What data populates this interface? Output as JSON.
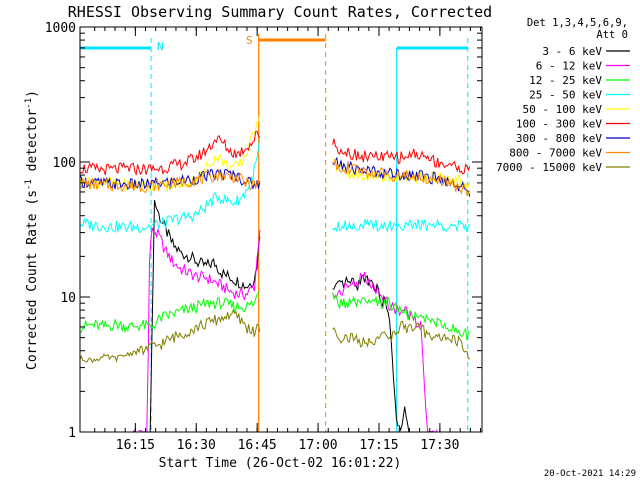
{
  "chart_data": {
    "type": "line",
    "title": "RHESSI Observing Summary Count Rates, Corrected",
    "xlabel": "Start Time (26-Oct-02 16:01:22)",
    "ylabel": "Corrected Count Rate (s^-1 detector^-1)",
    "ylabel_main": "Corrected Count Rate (s",
    "ylabel_exp1": "-1",
    "ylabel_mid": " detector",
    "ylabel_exp2": "-1",
    "ylabel_end": ")",
    "y_scale": "log",
    "ylim": [
      1,
      1000
    ],
    "xlim_minutes": [
      0,
      99
    ],
    "yticks": [
      {
        "value": 1,
        "label": "1"
      },
      {
        "value": 10,
        "label": "10"
      },
      {
        "value": 100,
        "label": "100"
      },
      {
        "value": 1000,
        "label": "1000"
      }
    ],
    "xticks": [
      {
        "minute": 13.63,
        "label": "16:15"
      },
      {
        "minute": 28.63,
        "label": "16:30"
      },
      {
        "minute": 43.63,
        "label": "16:45"
      },
      {
        "minute": 58.63,
        "label": "17:00"
      },
      {
        "minute": 73.63,
        "label": "17:15"
      },
      {
        "minute": 88.63,
        "label": "17:30"
      }
    ],
    "legend_header": [
      "Det 1,3,4,5,6,9,",
      "Att 0"
    ],
    "legend_placement": "outside-right",
    "timestamp": "20-Oct-2021 14:29",
    "markers": {
      "night": {
        "label": "N",
        "color": "#00e5ff",
        "segments": [
          [
            0,
            17.5
          ],
          [
            78,
            95.5
          ]
        ]
      },
      "saa": {
        "label": "S",
        "color": "#ff8000",
        "segment": [
          44,
          60.5
        ]
      }
    },
    "gap_minutes": [
      45.2,
      62
    ],
    "series": [
      {
        "name": "3 - 6 keV",
        "color": "#000000",
        "points": [
          [
            17.3,
            1
          ],
          [
            18.3,
            52
          ],
          [
            19.5,
            40
          ],
          [
            21,
            32
          ],
          [
            23,
            24
          ],
          [
            25,
            21
          ],
          [
            27,
            20
          ],
          [
            29,
            18
          ],
          [
            31,
            17
          ],
          [
            33,
            18
          ],
          [
            35,
            15
          ],
          [
            37,
            14
          ],
          [
            39,
            13
          ],
          [
            41,
            12
          ],
          [
            42.5,
            13
          ],
          [
            43.5,
            16
          ],
          [
            44.3,
            30
          ],
          [
            62.2,
            11
          ],
          [
            64,
            12
          ],
          [
            66,
            13
          ],
          [
            68,
            12
          ],
          [
            70,
            14
          ],
          [
            72,
            13
          ],
          [
            74,
            10
          ],
          [
            76,
            8
          ],
          [
            78,
            1.2
          ],
          [
            79,
            1
          ],
          [
            80,
            1.5
          ],
          [
            81,
            1
          ]
        ]
      },
      {
        "name": "6 - 12 keV",
        "color": "#ff00ff",
        "points": [
          [
            13,
            1
          ],
          [
            16.5,
            1
          ],
          [
            17.2,
            25
          ],
          [
            18,
            32
          ],
          [
            19.5,
            28
          ],
          [
            21,
            22
          ],
          [
            23,
            18
          ],
          [
            25,
            16
          ],
          [
            27,
            15
          ],
          [
            29,
            14
          ],
          [
            31,
            14
          ],
          [
            33,
            13
          ],
          [
            35,
            12
          ],
          [
            37,
            11
          ],
          [
            39,
            10.5
          ],
          [
            41,
            10.5
          ],
          [
            43,
            12
          ],
          [
            44.3,
            33
          ],
          [
            62.2,
            10
          ],
          [
            64,
            11
          ],
          [
            66,
            12
          ],
          [
            68,
            13
          ],
          [
            70,
            14
          ],
          [
            72,
            12
          ],
          [
            74,
            10
          ],
          [
            76,
            9
          ],
          [
            78,
            8
          ],
          [
            80,
            8
          ],
          [
            82,
            7
          ],
          [
            84,
            6
          ],
          [
            85.5,
            1
          ],
          [
            88,
            1
          ]
        ]
      },
      {
        "name": "12 - 25 keV",
        "color": "#00ff00",
        "points": [
          [
            0,
            6
          ],
          [
            3,
            6.2
          ],
          [
            6,
            6
          ],
          [
            9,
            6.3
          ],
          [
            12,
            6
          ],
          [
            15,
            6.2
          ],
          [
            17.5,
            6
          ],
          [
            20,
            7
          ],
          [
            23,
            7.5
          ],
          [
            26,
            8
          ],
          [
            29,
            8.5
          ],
          [
            32,
            9
          ],
          [
            35,
            9
          ],
          [
            38,
            8.5
          ],
          [
            41,
            8.5
          ],
          [
            43,
            9
          ],
          [
            44.3,
            12
          ],
          [
            62.2,
            10
          ],
          [
            64,
            9
          ],
          [
            67,
            9
          ],
          [
            70,
            9
          ],
          [
            73,
            9
          ],
          [
            76,
            9
          ],
          [
            79,
            8
          ],
          [
            82,
            7
          ],
          [
            85,
            7
          ],
          [
            88,
            6.5
          ],
          [
            91,
            6
          ],
          [
            94,
            5.5
          ],
          [
            96,
            5
          ]
        ]
      },
      {
        "name": "25 - 50 keV",
        "color": "#00ffff",
        "points": [
          [
            0,
            35
          ],
          [
            4,
            34
          ],
          [
            8,
            33
          ],
          [
            12,
            33
          ],
          [
            16,
            33
          ],
          [
            20,
            35
          ],
          [
            24,
            38
          ],
          [
            28,
            40
          ],
          [
            30,
            44
          ],
          [
            32,
            50
          ],
          [
            34,
            56
          ],
          [
            36,
            52
          ],
          [
            38,
            50
          ],
          [
            40,
            55
          ],
          [
            42,
            70
          ],
          [
            43.5,
            100
          ],
          [
            44.3,
            145
          ],
          [
            62.2,
            34
          ],
          [
            66,
            34
          ],
          [
            70,
            34
          ],
          [
            74,
            34
          ],
          [
            78,
            34
          ],
          [
            82,
            34
          ],
          [
            86,
            34
          ],
          [
            90,
            34
          ],
          [
            94,
            33
          ],
          [
            96,
            33
          ]
        ]
      },
      {
        "name": "50 - 100 keV",
        "color": "#ffff00",
        "points": [
          [
            0,
            70
          ],
          [
            4,
            70
          ],
          [
            8,
            70
          ],
          [
            12,
            68
          ],
          [
            16,
            67
          ],
          [
            20,
            67
          ],
          [
            24,
            68
          ],
          [
            28,
            72
          ],
          [
            30,
            80
          ],
          [
            32,
            100
          ],
          [
            34,
            110
          ],
          [
            36,
            95
          ],
          [
            38,
            90
          ],
          [
            40,
            100
          ],
          [
            42,
            140
          ],
          [
            43.5,
            200
          ],
          [
            44.3,
            240
          ],
          [
            62.2,
            100
          ],
          [
            64,
            90
          ],
          [
            67,
            80
          ],
          [
            70,
            78
          ],
          [
            73,
            78
          ],
          [
            76,
            78
          ],
          [
            79,
            77
          ],
          [
            82,
            78
          ],
          [
            85,
            77
          ],
          [
            88,
            76
          ],
          [
            91,
            75
          ],
          [
            94,
            72
          ],
          [
            96,
            68
          ]
        ]
      },
      {
        "name": "100 - 300 keV",
        "color": "#ff0000",
        "points": [
          [
            0,
            90
          ],
          [
            4,
            88
          ],
          [
            8,
            88
          ],
          [
            12,
            90
          ],
          [
            16,
            88
          ],
          [
            20,
            90
          ],
          [
            24,
            95
          ],
          [
            28,
            105
          ],
          [
            30,
            115
          ],
          [
            32,
            130
          ],
          [
            33.5,
            150
          ],
          [
            35,
            140
          ],
          [
            37,
            120
          ],
          [
            39,
            115
          ],
          [
            41,
            130
          ],
          [
            42.5,
            140
          ],
          [
            43.5,
            160
          ],
          [
            44.3,
            160
          ],
          [
            62.2,
            140
          ],
          [
            64,
            125
          ],
          [
            67,
            115
          ],
          [
            70,
            110
          ],
          [
            73,
            110
          ],
          [
            76,
            108
          ],
          [
            79,
            108
          ],
          [
            82,
            115
          ],
          [
            85,
            110
          ],
          [
            88,
            100
          ],
          [
            91,
            95
          ],
          [
            94,
            90
          ],
          [
            96,
            85
          ]
        ]
      },
      {
        "name": "300 - 800 keV",
        "color": "#0000cc",
        "points": [
          [
            0,
            72
          ],
          [
            4,
            70
          ],
          [
            8,
            69
          ],
          [
            12,
            68
          ],
          [
            16,
            68
          ],
          [
            20,
            70
          ],
          [
            24,
            72
          ],
          [
            28,
            75
          ],
          [
            32,
            80
          ],
          [
            35,
            82
          ],
          [
            38,
            80
          ],
          [
            41,
            72
          ],
          [
            43,
            68
          ],
          [
            44.3,
            70
          ],
          [
            62.2,
            100
          ],
          [
            64,
            95
          ],
          [
            67,
            90
          ],
          [
            70,
            87
          ],
          [
            73,
            85
          ],
          [
            76,
            82
          ],
          [
            79,
            82
          ],
          [
            82,
            80
          ],
          [
            85,
            78
          ],
          [
            88,
            75
          ],
          [
            91,
            72
          ],
          [
            94,
            65
          ],
          [
            96,
            60
          ]
        ]
      },
      {
        "name": "800 - 7000 keV",
        "color": "#ff8c00",
        "points": [
          [
            0,
            70
          ],
          [
            4,
            68
          ],
          [
            8,
            67
          ],
          [
            12,
            67
          ],
          [
            16,
            66
          ],
          [
            20,
            68
          ],
          [
            24,
            70
          ],
          [
            28,
            73
          ],
          [
            32,
            78
          ],
          [
            35,
            80
          ],
          [
            38,
            78
          ],
          [
            41,
            70
          ],
          [
            43,
            67
          ],
          [
            44.3,
            68
          ],
          [
            62.2,
            98
          ],
          [
            64,
            93
          ],
          [
            67,
            88
          ],
          [
            70,
            85
          ],
          [
            73,
            83
          ],
          [
            76,
            80
          ],
          [
            79,
            80
          ],
          [
            82,
            78
          ],
          [
            85,
            76
          ],
          [
            88,
            73
          ],
          [
            91,
            70
          ],
          [
            94,
            63
          ],
          [
            96,
            58
          ]
        ]
      },
      {
        "name": "7000 - 15000 keV",
        "color": "#808000",
        "points": [
          [
            0,
            3.5
          ],
          [
            3,
            3.4
          ],
          [
            6,
            3.6
          ],
          [
            9,
            3.5
          ],
          [
            12,
            3.8
          ],
          [
            15,
            4
          ],
          [
            17.5,
            4.2
          ],
          [
            20,
            4.5
          ],
          [
            23,
            5
          ],
          [
            26,
            5.5
          ],
          [
            29,
            6
          ],
          [
            32,
            6.5
          ],
          [
            35,
            7
          ],
          [
            37,
            7.5
          ],
          [
            39,
            7
          ],
          [
            41,
            6
          ],
          [
            43,
            5.5
          ],
          [
            44.3,
            6
          ],
          [
            62.2,
            6
          ],
          [
            64,
            5
          ],
          [
            67,
            5
          ],
          [
            70,
            4.5
          ],
          [
            73,
            5
          ],
          [
            76,
            5
          ],
          [
            79,
            6
          ],
          [
            82,
            6
          ],
          [
            85,
            5.5
          ],
          [
            88,
            5
          ],
          [
            91,
            5
          ],
          [
            94,
            4.5
          ],
          [
            96,
            3.5
          ]
        ]
      }
    ]
  }
}
